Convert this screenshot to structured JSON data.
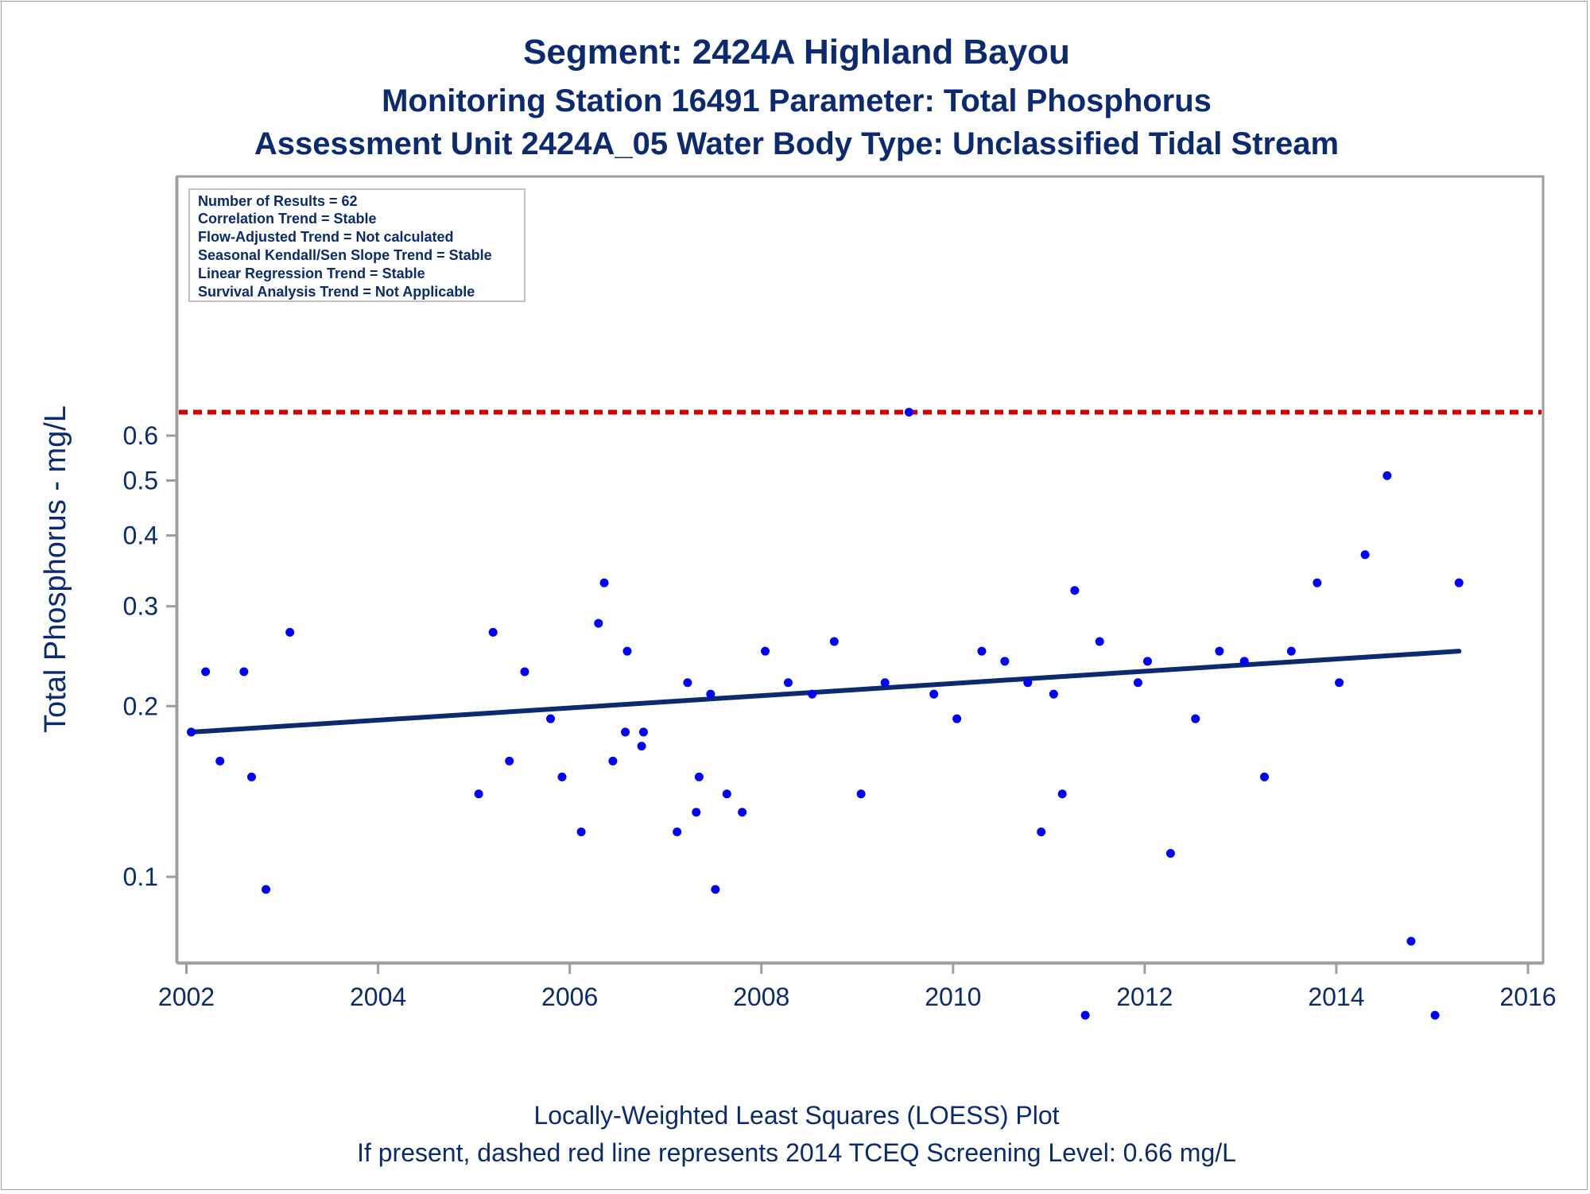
{
  "chart_data": {
    "type": "scatter",
    "title": "Segment: 2424A  Highland Bayou",
    "subtitle_1": "Monitoring Station 16491 Parameter: Total Phosphorus",
    "subtitle_2": "Assessment Unit 2424A_05   Water Body Type: Unclassified Tidal Stream",
    "ylabel": "Total Phosphorus - mg/L",
    "xlabel": "",
    "x_ticks": [
      "2002",
      "2004",
      "2006",
      "2008",
      "2010",
      "2012",
      "2014",
      "2016"
    ],
    "y_ticks": [
      "0.1",
      "0.2",
      "0.3",
      "0.4",
      "0.5",
      "0.6"
    ],
    "y_scale": "log",
    "xlim": [
      2002,
      2016
    ],
    "ylim": [
      0.055,
      0.68
    ],
    "grid": false,
    "series": [
      {
        "type": "scatter",
        "color": "#0000ff",
        "points": [
          [
            2002.05,
            0.18
          ],
          [
            2002.2,
            0.23
          ],
          [
            2002.35,
            0.16
          ],
          [
            2002.6,
            0.23
          ],
          [
            2002.68,
            0.15
          ],
          [
            2002.83,
            0.095
          ],
          [
            2003.08,
            0.27
          ],
          [
            2005.05,
            0.14
          ],
          [
            2005.2,
            0.27
          ],
          [
            2005.37,
            0.16
          ],
          [
            2005.53,
            0.23
          ],
          [
            2005.8,
            0.19
          ],
          [
            2005.92,
            0.15
          ],
          [
            2006.12,
            0.12
          ],
          [
            2006.3,
            0.28
          ],
          [
            2006.36,
            0.33
          ],
          [
            2006.45,
            0.16
          ],
          [
            2006.58,
            0.18
          ],
          [
            2006.6,
            0.25
          ],
          [
            2006.75,
            0.17
          ],
          [
            2006.77,
            0.18
          ],
          [
            2007.12,
            0.12
          ],
          [
            2007.23,
            0.22
          ],
          [
            2007.32,
            0.13
          ],
          [
            2007.35,
            0.15
          ],
          [
            2007.47,
            0.21
          ],
          [
            2007.52,
            0.095
          ],
          [
            2007.64,
            0.14
          ],
          [
            2007.8,
            0.13
          ],
          [
            2008.04,
            0.25
          ],
          [
            2008.28,
            0.22
          ],
          [
            2008.53,
            0.21
          ],
          [
            2008.76,
            0.26
          ],
          [
            2009.04,
            0.14
          ],
          [
            2009.29,
            0.22
          ],
          [
            2009.54,
            0.66
          ],
          [
            2009.8,
            0.21
          ],
          [
            2010.04,
            0.19
          ],
          [
            2010.3,
            0.25
          ],
          [
            2010.54,
            0.24
          ],
          [
            2010.78,
            0.22
          ],
          [
            2010.92,
            0.12
          ],
          [
            2011.05,
            0.21
          ],
          [
            2011.14,
            0.14
          ],
          [
            2011.27,
            0.32
          ],
          [
            2011.38,
            0.057
          ],
          [
            2011.53,
            0.26
          ],
          [
            2011.93,
            0.22
          ],
          [
            2012.03,
            0.24
          ],
          [
            2012.27,
            0.11
          ],
          [
            2012.53,
            0.19
          ],
          [
            2012.78,
            0.25
          ],
          [
            2013.04,
            0.24
          ],
          [
            2013.25,
            0.15
          ],
          [
            2013.53,
            0.25
          ],
          [
            2013.8,
            0.33
          ],
          [
            2014.03,
            0.22
          ],
          [
            2014.3,
            0.37
          ],
          [
            2014.53,
            0.51
          ],
          [
            2014.78,
            0.077
          ],
          [
            2015.03,
            0.057
          ],
          [
            2015.28,
            0.33
          ]
        ]
      },
      {
        "type": "line",
        "color": "#0b2a6f",
        "points": [
          [
            2002.05,
            0.18
          ],
          [
            2015.28,
            0.25
          ]
        ]
      },
      {
        "type": "reference_line",
        "style": "dashed",
        "color": "#d40000",
        "y": 0.66
      }
    ],
    "inset_box": [
      "Number of Results = 62",
      "Correlation Trend = Stable",
      "Flow-Adjusted Trend = Not calculated",
      "Seasonal Kendall/Sen Slope Trend = Stable",
      "Linear Regression Trend = Stable",
      "Survival Analysis Trend = Not Applicable"
    ],
    "footnotes": [
      "Locally-Weighted Least Squares (LOESS) Plot",
      "If present, dashed red line represents 2014 TCEQ Screening Level: 0.66 mg/L"
    ]
  }
}
